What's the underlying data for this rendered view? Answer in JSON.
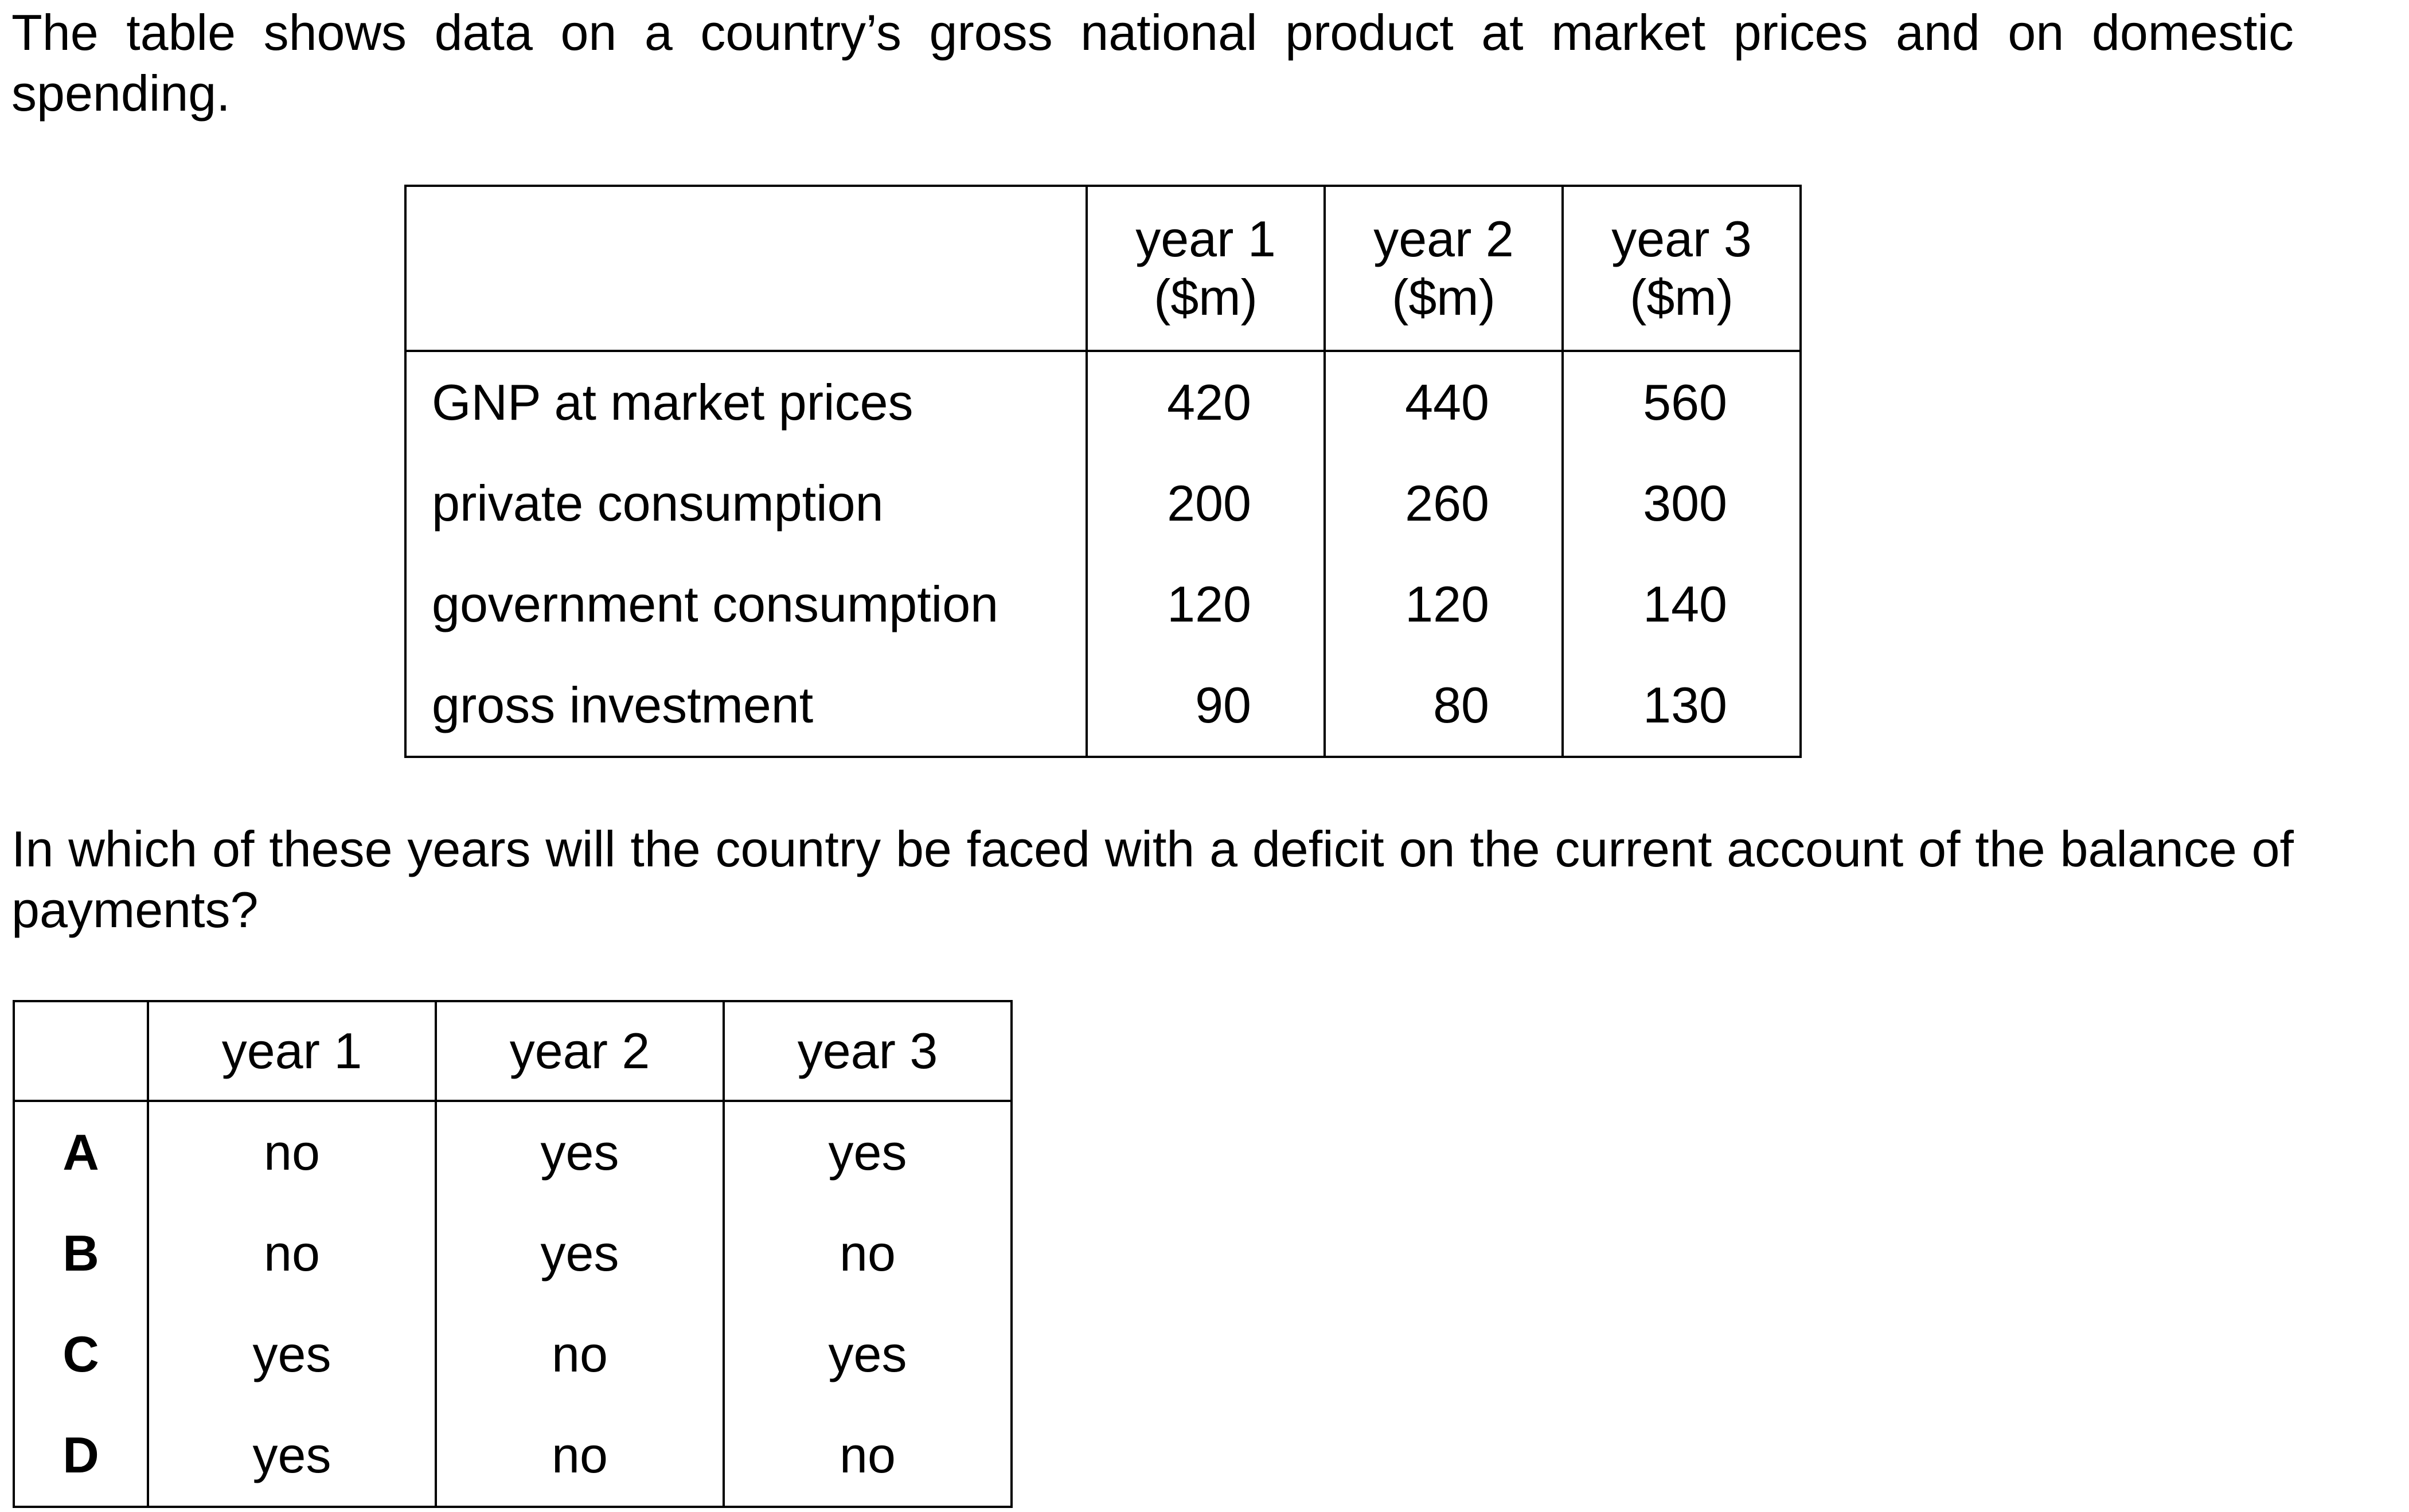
{
  "intro": "The table shows data on a country’s gross national product at market prices and on domestic spending.",
  "data_table": {
    "headers": [
      {
        "line1": "year 1",
        "line2": "($m)"
      },
      {
        "line1": "year 2",
        "line2": "($m)"
      },
      {
        "line1": "year 3",
        "line2": "($m)"
      }
    ],
    "rows": [
      {
        "label": "GNP at market prices",
        "values": [
          "420",
          "440",
          "560"
        ]
      },
      {
        "label": "private consumption",
        "values": [
          "200",
          "260",
          "300"
        ]
      },
      {
        "label": "government consumption",
        "values": [
          "120",
          "120",
          "140"
        ]
      },
      {
        "label": "gross investment",
        "values": [
          "90",
          "80",
          "130"
        ]
      }
    ]
  },
  "question": "In which of these years will the country be faced with a deficit on the current account of the balance of payments?",
  "options_table": {
    "headers": [
      "year 1",
      "year 2",
      "year 3"
    ],
    "rows": [
      {
        "letter": "A",
        "values": [
          "no",
          "yes",
          "yes"
        ]
      },
      {
        "letter": "B",
        "values": [
          "no",
          "yes",
          "no"
        ]
      },
      {
        "letter": "C",
        "values": [
          "yes",
          "no",
          "yes"
        ]
      },
      {
        "letter": "D",
        "values": [
          "yes",
          "no",
          "no"
        ]
      }
    ]
  }
}
